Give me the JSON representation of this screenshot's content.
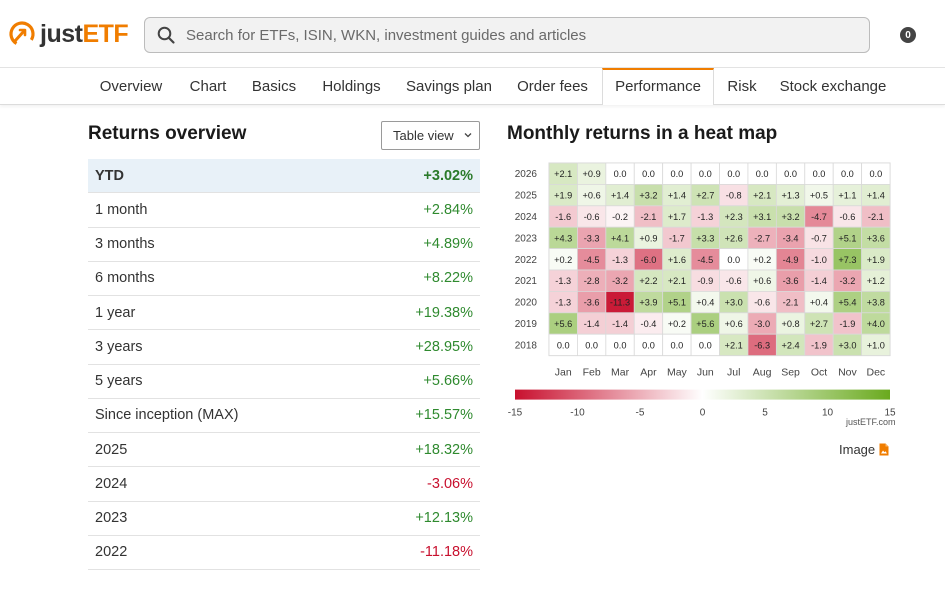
{
  "header": {
    "logo_part1": "just",
    "logo_part2": "ETF",
    "search_placeholder": "Search for ETFs, ISIN, WKN, investment guides and articles",
    "badge_count": "0"
  },
  "tabs": [
    {
      "label": "Overview",
      "active": false
    },
    {
      "label": "Chart",
      "active": false
    },
    {
      "label": "Basics",
      "active": false
    },
    {
      "label": "Holdings",
      "active": false
    },
    {
      "label": "Savings plan",
      "active": false
    },
    {
      "label": "Order fees",
      "active": false
    },
    {
      "label": "Performance",
      "active": true
    },
    {
      "label": "Risk",
      "active": false
    },
    {
      "label": "Stock exchange",
      "active": false
    }
  ],
  "returns_overview": {
    "title": "Returns overview",
    "view_select": "Table view",
    "rows": [
      {
        "label": "YTD",
        "value": "+3.02%"
      },
      {
        "label": "1 month",
        "value": "+2.84%"
      },
      {
        "label": "3 months",
        "value": "+4.89%"
      },
      {
        "label": "6 months",
        "value": "+8.22%"
      },
      {
        "label": "1 year",
        "value": "+19.38%"
      },
      {
        "label": "3 years",
        "value": "+28.95%"
      },
      {
        "label": "5 years",
        "value": "+5.66%"
      },
      {
        "label": "Since inception (MAX)",
        "value": "+15.57%"
      },
      {
        "label": "2025",
        "value": "+18.32%"
      },
      {
        "label": "2024",
        "value": "-3.06%"
      },
      {
        "label": "2023",
        "value": "+12.13%"
      },
      {
        "label": "2022",
        "value": "-11.18%"
      }
    ]
  },
  "heatmap": {
    "title": "Monthly returns in a heat map",
    "credit": "justETF.com",
    "image_link": "Image",
    "colors": {
      "negative": "#c8102e",
      "neutral": "#ffffff",
      "positive": "#6aaa1e"
    }
  },
  "chart_data": {
    "type": "heatmap",
    "title": "Monthly returns in a heat map",
    "x": [
      "Jan",
      "Feb",
      "Mar",
      "Apr",
      "May",
      "Jun",
      "Jul",
      "Aug",
      "Sep",
      "Oct",
      "Nov",
      "Dec"
    ],
    "y": [
      "2026",
      "2025",
      "2024",
      "2023",
      "2022",
      "2021",
      "2020",
      "2019",
      "2018"
    ],
    "values": [
      [
        "+2.1",
        "+0.9",
        "0.0",
        "0.0",
        "0.0",
        "0.0",
        "0.0",
        "0.0",
        "0.0",
        "0.0",
        "0.0",
        "0.0"
      ],
      [
        "+1.9",
        "+0.6",
        "+1.4",
        "+3.2",
        "+1.4",
        "+2.7",
        "-0.8",
        "+2.1",
        "+1.3",
        "+0.5",
        "+1.1",
        "+1.4"
      ],
      [
        "-1.6",
        "-0.6",
        "-0.2",
        "-2.1",
        "+1.7",
        "-1.3",
        "+2.3",
        "+3.1",
        "+3.2",
        "-4.7",
        "-0.6",
        "-2.1"
      ],
      [
        "+4.3",
        "-3.3",
        "+4.1",
        "+0.9",
        "-1.7",
        "+3.3",
        "+2.6",
        "-2.7",
        "-3.4",
        "-0.7",
        "+5.1",
        "+3.6"
      ],
      [
        "+0.2",
        "-4.5",
        "-1.3",
        "-6.0",
        "+1.6",
        "-4.5",
        "0.0",
        "+0.2",
        "-4.9",
        "-1.0",
        "+7.3",
        "+1.9"
      ],
      [
        "-1.3",
        "-2.8",
        "-3.2",
        "+2.2",
        "+2.1",
        "-0.9",
        "-0.6",
        "+0.6",
        "-3.6",
        "-1.4",
        "-3.2",
        "+1.2"
      ],
      [
        "-1.3",
        "-3.6",
        "-11.3",
        "+3.9",
        "+5.1",
        "+0.4",
        "+3.0",
        "-0.6",
        "-2.1",
        "+0.4",
        "+5.4",
        "+3.8"
      ],
      [
        "+5.6",
        "-1.4",
        "-1.4",
        "-0.4",
        "+0.2",
        "+5.6",
        "+0.6",
        "-3.0",
        "+0.8",
        "+2.7",
        "-1.9",
        "+4.0"
      ],
      [
        "0.0",
        "0.0",
        "0.0",
        "0.0",
        "0.0",
        "0.0",
        "+2.1",
        "-6.3",
        "+2.4",
        "-1.9",
        "+3.0",
        "+1.0"
      ]
    ],
    "scale_ticks": [
      "-15",
      "-10",
      "-5",
      "0",
      "5",
      "10",
      "15"
    ],
    "scale_range": [
      -15,
      15
    ]
  }
}
